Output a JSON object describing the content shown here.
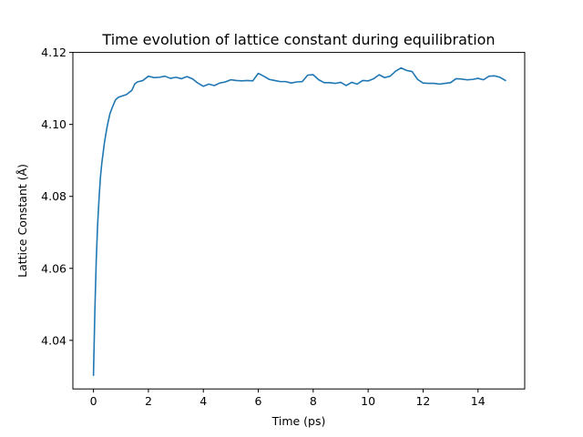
{
  "chart_data": {
    "type": "line",
    "title": "Time evolution of lattice constant during equilibration",
    "xlabel": "Time (ps)",
    "ylabel": "Lattice Constant (Å)",
    "xlim": [
      -0.75,
      15.7
    ],
    "ylim": [
      4.0265,
      4.12
    ],
    "xticks": [
      0,
      2,
      4,
      6,
      8,
      10,
      12,
      14
    ],
    "xtick_labels": [
      "0",
      "2",
      "4",
      "6",
      "8",
      "10",
      "12",
      "14"
    ],
    "yticks": [
      4.04,
      4.06,
      4.08,
      4.1,
      4.12
    ],
    "ytick_labels": [
      "4.04",
      "4.06",
      "4.08",
      "4.10",
      "4.12"
    ],
    "grid": false,
    "color": "#1f77b4",
    "series": [
      {
        "x": [
          0,
          0.05,
          0.1,
          0.15,
          0.2,
          0.25,
          0.3,
          0.4,
          0.5,
          0.6,
          0.7,
          0.8,
          0.9,
          1.0,
          1.2,
          1.4,
          1.5,
          1.6,
          1.8,
          2.0,
          2.2,
          2.4,
          2.6,
          2.8,
          3.0,
          3.2,
          3.4,
          3.6,
          3.8,
          4.0,
          4.2,
          4.4,
          4.6,
          4.8,
          5.0,
          5.2,
          5.4,
          5.6,
          5.8,
          6.0,
          6.2,
          6.4,
          6.6,
          6.8,
          7.0,
          7.2,
          7.4,
          7.6,
          7.8,
          8.0,
          8.2,
          8.4,
          8.6,
          8.8,
          9.0,
          9.2,
          9.4,
          9.6,
          9.8,
          10.0,
          10.2,
          10.4,
          10.6,
          10.8,
          11.0,
          11.2,
          11.4,
          11.6,
          11.8,
          12.0,
          12.2,
          12.4,
          12.6,
          12.8,
          13.0,
          13.2,
          13.4,
          13.6,
          13.8,
          14.0,
          14.2,
          14.4,
          14.6,
          14.8,
          15.0
        ],
        "y": [
          4.0303,
          4.048,
          4.062,
          4.072,
          4.079,
          4.085,
          4.089,
          4.095,
          4.0995,
          4.103,
          4.105,
          4.1068,
          4.1075,
          4.1078,
          4.1083,
          4.1095,
          4.1112,
          4.1118,
          4.1122,
          4.1134,
          4.113,
          4.1131,
          4.1134,
          4.1128,
          4.1131,
          4.1127,
          4.1133,
          4.1127,
          4.1115,
          4.1106,
          4.1112,
          4.1108,
          4.1115,
          4.1118,
          4.1124,
          4.1122,
          4.1121,
          4.1122,
          4.1121,
          4.1142,
          4.1134,
          4.1125,
          4.1122,
          4.1119,
          4.1119,
          4.1115,
          4.1118,
          4.1119,
          4.1137,
          4.1138,
          4.1124,
          4.1116,
          4.1116,
          4.1114,
          4.1117,
          4.1108,
          4.1117,
          4.1112,
          4.1122,
          4.1121,
          4.1127,
          4.1138,
          4.113,
          4.1134,
          4.1148,
          4.1157,
          4.115,
          4.1147,
          4.1125,
          4.1115,
          4.1114,
          4.1114,
          4.1112,
          4.1114,
          4.1116,
          4.1127,
          4.1126,
          4.1124,
          4.1125,
          4.1128,
          4.1124,
          4.1134,
          4.1135,
          4.1131,
          4.1122
        ]
      }
    ]
  }
}
